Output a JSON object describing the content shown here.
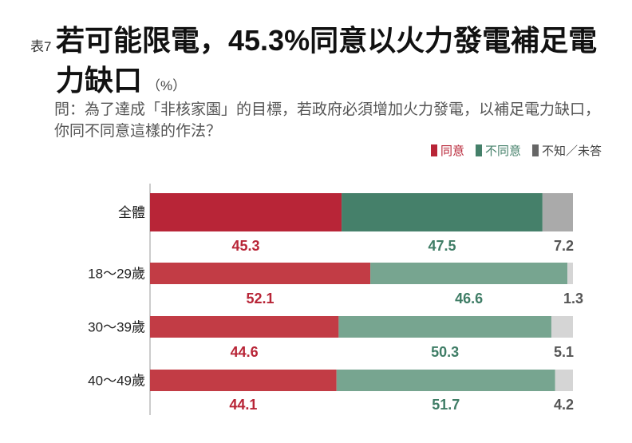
{
  "title_prefix": "表7",
  "title": "若可能限電，45.3%同意以火力發電補足電力缺口",
  "unit": "（%）",
  "question": "問：為了達成「非核家園」的目標，若政府必須增加火力發電，以補足電力缺口，你同不同意這樣的作法？",
  "chart_data": {
    "type": "bar",
    "orientation": "horizontal-stacked-100",
    "categories": [
      "全體",
      "18～29歲",
      "30～39歲",
      "40～49歲"
    ],
    "series": [
      {
        "name": "同意",
        "values": [
          45.3,
          52.1,
          44.6,
          44.1
        ],
        "color": "#b82537",
        "color_light": "#c23c45"
      },
      {
        "name": "不同意",
        "values": [
          47.5,
          46.6,
          50.3,
          51.7
        ],
        "color": "#45806a",
        "color_light": "#77a590"
      },
      {
        "name": "不知／未答",
        "values": [
          7.2,
          1.3,
          5.1,
          4.2
        ],
        "color": "#aaaaaa",
        "color_light": "#d5d5d5"
      }
    ],
    "label_colors": [
      "#b82537",
      "#3f7d66",
      "#555555"
    ],
    "xlim": [
      0,
      100
    ],
    "legend": "top-right",
    "grid": false
  }
}
